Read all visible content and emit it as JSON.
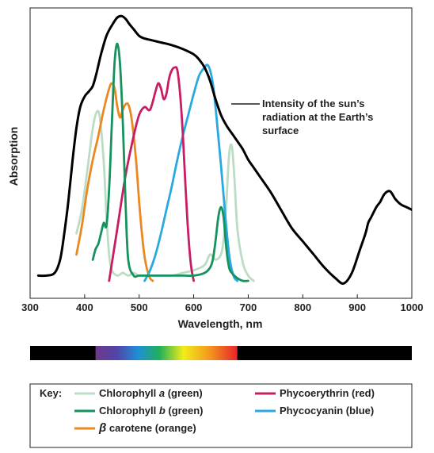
{
  "chart_data": {
    "type": "line",
    "xlabel": "Wavelength, nm",
    "ylabel": "Absorption",
    "xlim": [
      300,
      1000
    ],
    "ylim": [
      0,
      1
    ],
    "xticks": [
      "300",
      "400",
      "500",
      "600",
      "700",
      "800",
      "900",
      "1000"
    ],
    "grid": false,
    "annotation": {
      "lines": [
        "Intensity of the sun’s",
        "radiation at the Earth’s",
        "surface"
      ],
      "target_series": "sun"
    },
    "legend": {
      "title": "Key:",
      "position": "bottom",
      "entries": [
        {
          "series": "chl_a",
          "parts": [
            "Chlorophyll ",
            "a",
            " (green)"
          ]
        },
        {
          "series": "chl_b",
          "parts": [
            "Chlorophyll ",
            "b",
            " (green)"
          ]
        },
        {
          "series": "carotene",
          "parts": [
            "β",
            " carotene (orange)"
          ]
        },
        {
          "series": "phycoerythrin",
          "parts": [
            "Phycoerythrin (red)"
          ]
        },
        {
          "series": "phycocyanin",
          "parts": [
            "Phycocyanin (blue)"
          ]
        }
      ]
    },
    "spectrum_bar": {
      "visible_from": 420,
      "visible_to": 680,
      "background": "#000000"
    },
    "series": [
      {
        "id": "sun",
        "color": "#000000",
        "x": [
          315,
          330,
          345,
          355,
          362,
          370,
          378,
          385,
          392,
          400,
          408,
          415,
          422,
          430,
          440,
          450,
          460,
          468,
          475,
          482,
          490,
          500,
          510,
          520,
          530,
          540,
          560,
          580,
          600,
          610,
          620,
          630,
          640,
          650,
          660,
          670,
          680,
          690,
          700,
          710,
          720,
          740,
          760,
          780,
          800,
          820,
          840,
          860,
          875,
          890,
          905,
          915,
          920,
          925,
          935,
          942,
          950,
          960,
          970,
          980,
          990,
          1000
        ],
        "y": [
          0.02,
          0.02,
          0.03,
          0.08,
          0.17,
          0.3,
          0.46,
          0.58,
          0.66,
          0.7,
          0.72,
          0.74,
          0.79,
          0.86,
          0.93,
          0.97,
          1.0,
          1.005,
          0.995,
          0.975,
          0.955,
          0.93,
          0.92,
          0.915,
          0.91,
          0.905,
          0.895,
          0.88,
          0.86,
          0.84,
          0.81,
          0.76,
          0.69,
          0.63,
          0.59,
          0.56,
          0.53,
          0.5,
          0.46,
          0.43,
          0.4,
          0.34,
          0.27,
          0.2,
          0.15,
          0.1,
          0.05,
          0.01,
          -0.01,
          0.03,
          0.12,
          0.18,
          0.22,
          0.24,
          0.28,
          0.3,
          0.33,
          0.34,
          0.31,
          0.29,
          0.28,
          0.27
        ]
      },
      {
        "id": "chl_a",
        "color": "#bcdcc4",
        "x": [
          385,
          395,
          405,
          415,
          422,
          428,
          435,
          440,
          445,
          450,
          460,
          470,
          480,
          490,
          500,
          520,
          540,
          560,
          580,
          600,
          620,
          630,
          640,
          650,
          655,
          660,
          665,
          670,
          675,
          680,
          690,
          700,
          710
        ],
        "y": [
          0.18,
          0.27,
          0.42,
          0.58,
          0.64,
          0.62,
          0.45,
          0.25,
          0.1,
          0.04,
          0.02,
          0.03,
          0.02,
          0.03,
          0.02,
          0.02,
          0.02,
          0.02,
          0.03,
          0.04,
          0.06,
          0.1,
          0.08,
          0.1,
          0.16,
          0.3,
          0.48,
          0.51,
          0.38,
          0.2,
          0.07,
          0.02,
          0.0
        ]
      },
      {
        "id": "chl_b",
        "color": "#15925e",
        "x": [
          415,
          420,
          425,
          430,
          435,
          440,
          445,
          450,
          455,
          460,
          465,
          470,
          475,
          480,
          490,
          500,
          520,
          540,
          560,
          580,
          600,
          620,
          630,
          635,
          640,
          645,
          650,
          655,
          660,
          665,
          670,
          680,
          690,
          700
        ],
        "y": [
          0.08,
          0.12,
          0.14,
          0.18,
          0.22,
          0.21,
          0.35,
          0.6,
          0.83,
          0.9,
          0.82,
          0.6,
          0.3,
          0.08,
          0.02,
          0.02,
          0.02,
          0.02,
          0.02,
          0.02,
          0.02,
          0.03,
          0.05,
          0.08,
          0.15,
          0.24,
          0.28,
          0.24,
          0.12,
          0.05,
          0.03,
          0.01,
          0.0,
          0.0
        ]
      },
      {
        "id": "carotene",
        "color": "#ea8822",
        "x": [
          385,
          395,
          405,
          415,
          425,
          435,
          445,
          450,
          455,
          460,
          465,
          470,
          475,
          480,
          485,
          490,
          495,
          500,
          505,
          510,
          515,
          520,
          525
        ],
        "y": [
          0.1,
          0.21,
          0.35,
          0.46,
          0.55,
          0.65,
          0.73,
          0.75,
          0.73,
          0.66,
          0.62,
          0.65,
          0.67,
          0.67,
          0.63,
          0.55,
          0.44,
          0.3,
          0.18,
          0.09,
          0.04,
          0.01,
          0.0
        ]
      },
      {
        "id": "phycoerythrin",
        "color": "#c81c63",
        "x": [
          445,
          460,
          475,
          490,
          500,
          510,
          520,
          530,
          535,
          540,
          545,
          550,
          555,
          560,
          565,
          570,
          575,
          580,
          585,
          590,
          595,
          600
        ],
        "y": [
          0.0,
          0.2,
          0.4,
          0.55,
          0.63,
          0.66,
          0.65,
          0.72,
          0.75,
          0.73,
          0.69,
          0.71,
          0.77,
          0.8,
          0.81,
          0.8,
          0.71,
          0.56,
          0.36,
          0.18,
          0.06,
          0.0
        ]
      },
      {
        "id": "phycocyanin",
        "color": "#29a9e0",
        "x": [
          510,
          520,
          530,
          540,
          550,
          560,
          570,
          580,
          590,
          600,
          610,
          620,
          625,
          630,
          635,
          640,
          645,
          650,
          655,
          660,
          665,
          670,
          675,
          680
        ],
        "y": [
          0.0,
          0.04,
          0.1,
          0.18,
          0.27,
          0.36,
          0.46,
          0.55,
          0.63,
          0.71,
          0.78,
          0.81,
          0.82,
          0.8,
          0.75,
          0.66,
          0.55,
          0.44,
          0.32,
          0.2,
          0.1,
          0.04,
          0.01,
          0.0
        ]
      }
    ]
  }
}
